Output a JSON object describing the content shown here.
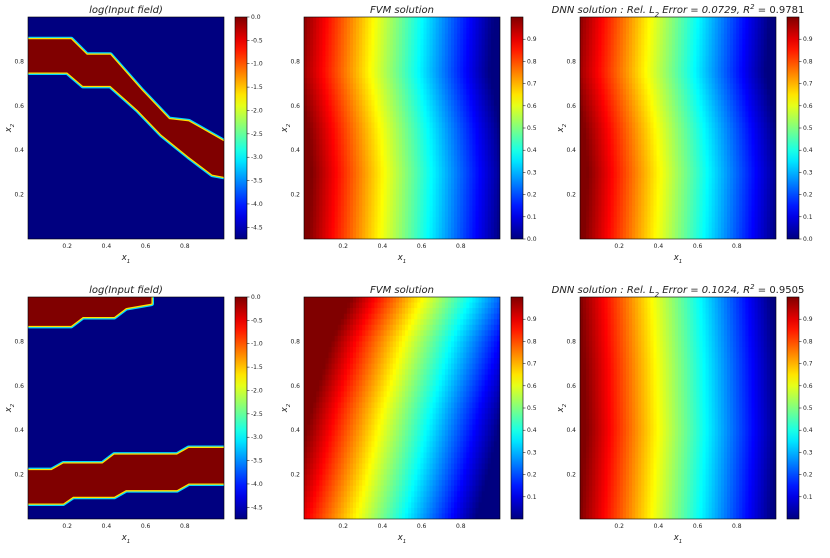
{
  "figure": {
    "colormap": "jet",
    "colors": {
      "background": "#ffffff",
      "jet_dark_blue": "#00007f",
      "jet_dark_red": "#7f0000"
    }
  },
  "chart_data": [
    {
      "type": "heatmap",
      "title": "log(Input field)",
      "xlabel_main": "x",
      "xlabel_sub": "1",
      "ylabel_main": "x",
      "ylabel_sub": "2",
      "xlim": [
        0,
        1
      ],
      "ylim": [
        0,
        1
      ],
      "xticks": [
        "0.2",
        "0.4",
        "0.6",
        "0.8"
      ],
      "yticks": [
        "0.2",
        "0.4",
        "0.6",
        "0.8"
      ],
      "grid": false,
      "colorbar": {
        "min": -4.75,
        "max": 0.0,
        "ticks": [
          "0.0",
          "-0.5",
          "-1.0",
          "-1.5",
          "-2.0",
          "-2.5",
          "-3.0",
          "-3.5",
          "-4.0",
          "-4.5"
        ]
      },
      "values_description": "Binary field: 0.0 inside one diagonal channel, about -4.75 elsewhere",
      "channels": [
        {
          "top": [
            [
              0.0,
              0.9
            ],
            [
              0.22,
              0.9
            ],
            [
              0.3,
              0.83
            ],
            [
              0.42,
              0.83
            ],
            [
              0.58,
              0.67
            ],
            [
              0.72,
              0.54
            ],
            [
              0.82,
              0.53
            ],
            [
              1.0,
              0.44
            ]
          ],
          "bottom": [
            [
              0.0,
              0.75
            ],
            [
              0.2,
              0.75
            ],
            [
              0.28,
              0.69
            ],
            [
              0.42,
              0.69
            ],
            [
              0.56,
              0.58
            ],
            [
              0.68,
              0.47
            ],
            [
              0.82,
              0.37
            ],
            [
              0.94,
              0.29
            ],
            [
              1.0,
              0.28
            ]
          ]
        }
      ]
    },
    {
      "type": "heatmap",
      "title": "FVM solution",
      "xlabel_main": "x",
      "xlabel_sub": "1",
      "ylabel_main": "x",
      "ylabel_sub": "2",
      "xlim": [
        0,
        1
      ],
      "ylim": [
        0,
        1
      ],
      "xticks": [
        "0.2",
        "0.4",
        "0.6",
        "0.8"
      ],
      "yticks": [
        "0.2",
        "0.4",
        "0.6",
        "0.8"
      ],
      "grid": false,
      "colorbar": {
        "min": 0.0,
        "max": 1.0,
        "ticks": [
          "0.0",
          "0.1",
          "0.2",
          "0.3",
          "0.4",
          "0.5",
          "0.6",
          "0.7",
          "0.8",
          "0.9"
        ]
      },
      "values_description": "Pressure decreasing from 1.0 at x1=0 to 0 at x1=1, front bent near the channel",
      "front_shift": [
        [
          0.0,
          0.0
        ],
        [
          0.3,
          0.02
        ],
        [
          0.5,
          0.0
        ],
        [
          0.75,
          -0.05
        ],
        [
          1.0,
          -0.03
        ]
      ]
    },
    {
      "type": "heatmap",
      "title": "DNN solution : Rel. L2 Error = 0.0729, R2 = 0.9781",
      "title_parts": {
        "lead": "DNN solution : Rel. L",
        "sub1": "2",
        "mid": " Error = 0.0729, R",
        "sup": "2",
        "tail": " = 0.9781"
      },
      "xlabel_main": "x",
      "xlabel_sub": "1",
      "ylabel_main": "x",
      "ylabel_sub": "2",
      "xlim": [
        0,
        1
      ],
      "ylim": [
        0,
        1
      ],
      "xticks": [
        "0.2",
        "0.4",
        "0.6",
        "0.8"
      ],
      "yticks": [
        "0.2",
        "0.4",
        "0.6",
        "0.8"
      ],
      "grid": false,
      "colorbar": {
        "min": 0.0,
        "max": 1.0,
        "ticks": [
          "0.0",
          "0.1",
          "0.2",
          "0.3",
          "0.4",
          "0.5",
          "0.6",
          "0.7",
          "0.8",
          "0.9"
        ]
      },
      "values_description": "Smoothed prediction of the FVM field above",
      "front_shift": [
        [
          0.0,
          0.0
        ],
        [
          0.3,
          0.02
        ],
        [
          0.5,
          0.0
        ],
        [
          0.75,
          -0.05
        ],
        [
          1.0,
          -0.03
        ]
      ]
    },
    {
      "type": "heatmap",
      "title": "log(Input field)",
      "xlabel_main": "x",
      "xlabel_sub": "1",
      "ylabel_main": "x",
      "ylabel_sub": "2",
      "xlim": [
        0,
        1
      ],
      "ylim": [
        0,
        1
      ],
      "xticks": [
        "0.2",
        "0.4",
        "0.6",
        "0.8"
      ],
      "yticks": [
        "0.2",
        "0.4",
        "0.6",
        "0.8"
      ],
      "grid": false,
      "colorbar": {
        "min": -4.75,
        "max": 0.0,
        "ticks": [
          "0.0",
          "-0.5",
          "-1.0",
          "-1.5",
          "-2.0",
          "-2.5",
          "-3.0",
          "-3.5",
          "-4.0",
          "-4.5"
        ]
      },
      "values_description": "Binary field: 0.0 inside two near-horizontal channels, about -4.75 elsewhere",
      "channels": [
        {
          "top": [
            [
              0.0,
              1.0
            ],
            [
              0.63,
              1.0
            ]
          ],
          "bottom": [
            [
              0.0,
              0.87
            ],
            [
              0.22,
              0.87
            ],
            [
              0.28,
              0.91
            ],
            [
              0.44,
              0.91
            ],
            [
              0.5,
              0.95
            ],
            [
              0.63,
              0.97
            ]
          ]
        },
        {
          "top": [
            [
              0.0,
              0.22
            ],
            [
              0.12,
              0.22
            ],
            [
              0.18,
              0.25
            ],
            [
              0.38,
              0.25
            ],
            [
              0.44,
              0.29
            ],
            [
              0.76,
              0.29
            ],
            [
              0.82,
              0.32
            ],
            [
              1.0,
              0.32
            ]
          ],
          "bottom": [
            [
              0.0,
              0.07
            ],
            [
              0.18,
              0.07
            ],
            [
              0.23,
              0.1
            ],
            [
              0.44,
              0.1
            ],
            [
              0.5,
              0.13
            ],
            [
              0.76,
              0.13
            ],
            [
              0.82,
              0.16
            ],
            [
              1.0,
              0.16
            ]
          ]
        }
      ]
    },
    {
      "type": "heatmap",
      "title": "FVM solution",
      "xlabel_main": "x",
      "xlabel_sub": "1",
      "ylabel_main": "x",
      "ylabel_sub": "2",
      "xlim": [
        0,
        1
      ],
      "ylim": [
        0,
        1
      ],
      "xticks": [
        "0.2",
        "0.4",
        "0.6",
        "0.8"
      ],
      "yticks": [
        "0.2",
        "0.4",
        "0.6",
        "0.8"
      ],
      "grid": false,
      "colorbar": {
        "min": 0.0,
        "max": 1.0,
        "ticks": [
          "0.1",
          "0.2",
          "0.3",
          "0.4",
          "0.5",
          "0.6",
          "0.7",
          "0.8",
          "0.9"
        ]
      },
      "values_description": "Pressure decreasing left to right, front tilted forward toward the top",
      "front_shift": [
        [
          0.0,
          -0.12
        ],
        [
          0.2,
          -0.06
        ],
        [
          0.5,
          0.02
        ],
        [
          0.8,
          0.12
        ],
        [
          1.0,
          0.22
        ]
      ]
    },
    {
      "type": "heatmap",
      "title": "DNN solution : Rel. L2 Error = 0.1024, R2 = 0.9505",
      "title_parts": {
        "lead": "DNN solution : Rel. L",
        "sub1": "2",
        "mid": " Error = 0.1024, R",
        "sup": "2",
        "tail": " = 0.9505"
      },
      "xlabel_main": "x",
      "xlabel_sub": "1",
      "ylabel_main": "x",
      "ylabel_sub": "2",
      "xlim": [
        0,
        1
      ],
      "ylim": [
        0,
        1
      ],
      "xticks": [
        "0.2",
        "0.4",
        "0.6",
        "0.8"
      ],
      "yticks": [
        "0.2",
        "0.4",
        "0.6",
        "0.8"
      ],
      "grid": false,
      "colorbar": {
        "min": 0.0,
        "max": 1.0,
        "ticks": [
          "0.1",
          "0.2",
          "0.3",
          "0.4",
          "0.5",
          "0.6",
          "0.7",
          "0.8",
          "0.9"
        ]
      },
      "values_description": "Smoothed prediction with a weaker tilt than the FVM field",
      "front_shift": [
        [
          0.0,
          -0.02
        ],
        [
          0.4,
          0.01
        ],
        [
          0.7,
          0.0
        ],
        [
          1.0,
          -0.02
        ]
      ]
    }
  ]
}
